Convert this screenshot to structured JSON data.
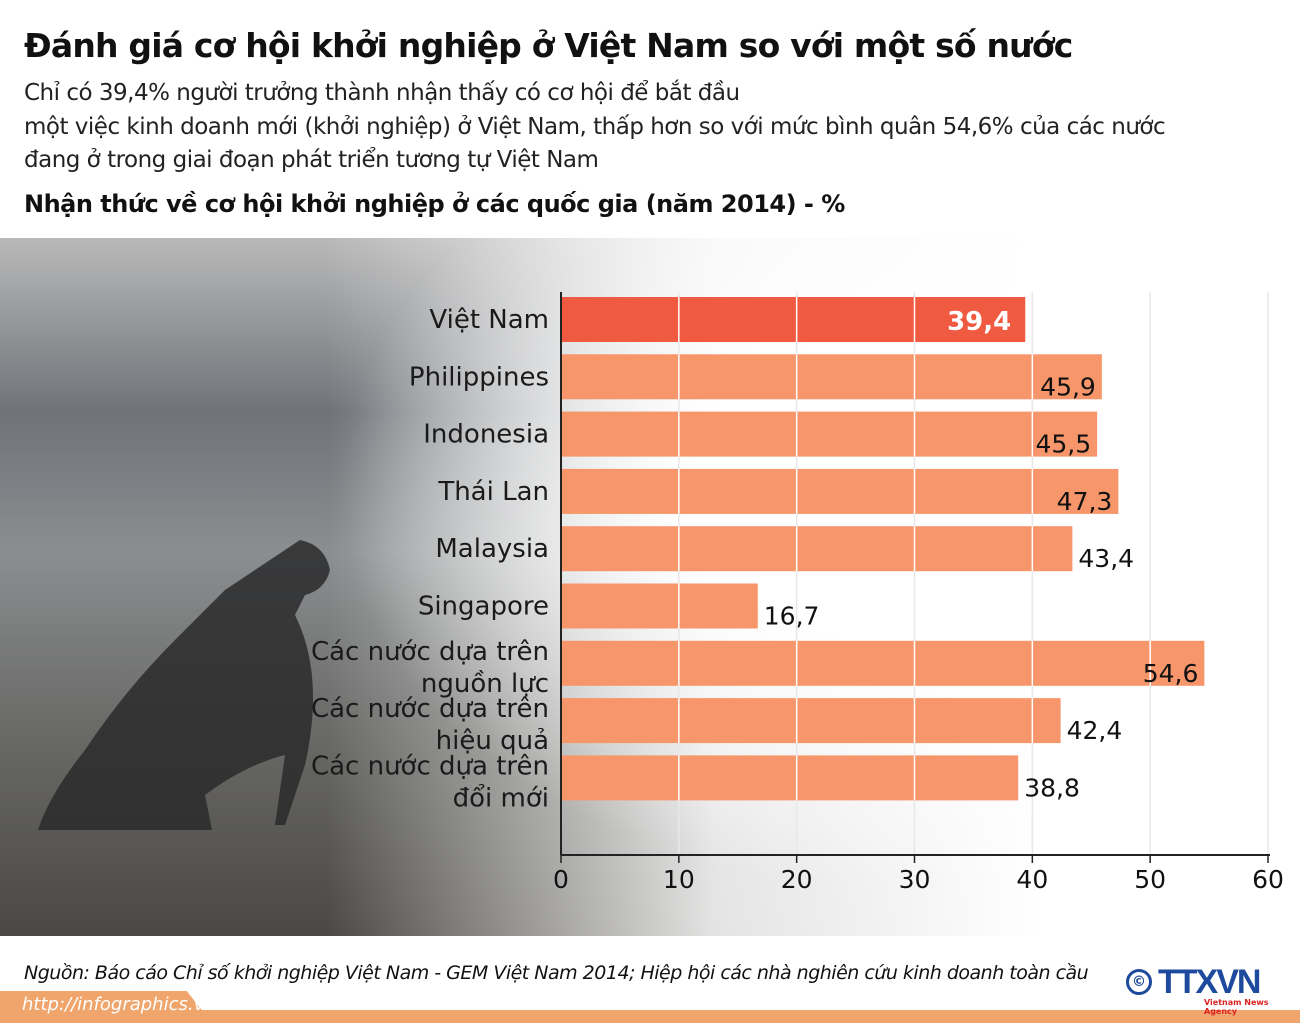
{
  "title": "Đánh giá cơ hội khởi nghiệp ở Việt Nam so với một số nước",
  "subtitle_lines": [
    "Chỉ có 39,4% người trưởng thành nhận thấy có cơ hội để bắt đầu",
    "một việc kinh doanh mới (khởi nghiệp) ở Việt Nam, thấp hơn so với mức bình quân 54,6% của các nước",
    "đang ở trong giai đoạn phát triển tương tự Việt Nam"
  ],
  "chart_data": {
    "type": "bar",
    "orientation": "horizontal",
    "title": "Nhận thức về cơ hội khởi nghiệp ở các quốc gia (năm 2014) - %",
    "categories": [
      [
        "Việt Nam"
      ],
      [
        "Philippines"
      ],
      [
        "Indonesia"
      ],
      [
        "Thái Lan"
      ],
      [
        "Malaysia"
      ],
      [
        "Singapore"
      ],
      [
        "Các nước dựa trên",
        "nguồn lực"
      ],
      [
        "Các nước dựa trên",
        "hiệu quả"
      ],
      [
        "Các nước dựa trên",
        "đổi mới"
      ]
    ],
    "values": [
      39.4,
      45.9,
      45.5,
      47.3,
      43.4,
      16.7,
      54.6,
      42.4,
      38.8
    ],
    "value_labels": [
      "39,4",
      "45,9",
      "45,5",
      "47,3",
      "43,4",
      "16,7",
      "54,6",
      "42,4",
      "38,8"
    ],
    "highlight_index": 0,
    "xlim": [
      0,
      60
    ],
    "xticks": [
      "0",
      "10",
      "20",
      "30",
      "40",
      "50",
      "60"
    ],
    "colors": {
      "highlight": "#f05a40",
      "bar": "#f6966a"
    }
  },
  "footer": {
    "source": "Nguồn: Báo cáo Chỉ số khởi nghiệp Việt Nam - GEM Việt Nam 2014; Hiệp hội các nhà nghiên cứu kinh doanh toàn cầu",
    "url": "http://infographics.vn",
    "logo": "TTXVN",
    "logo_sub": "Vietnam News Agency",
    "copyright": "©"
  }
}
